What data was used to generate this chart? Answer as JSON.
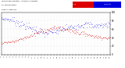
{
  "bg_color": "#ffffff",
  "humidity_color": "#0000dd",
  "temp_color": "#dd0000",
  "ylim": [
    0,
    100
  ],
  "num_points": 200,
  "seed": 7,
  "title_text": "Milwaukee Weather  Outdoor Humidity",
  "subtitle_text": "vs Temperature",
  "sub2_text": "Every 5 Minutes",
  "legend_red_label": "Temp",
  "legend_blue_label": "Humidity",
  "y_ticks": [
    0,
    20,
    40,
    60,
    80,
    100
  ],
  "ytick_labels": [
    "0",
    "20",
    "40",
    "60",
    "80",
    "100"
  ]
}
